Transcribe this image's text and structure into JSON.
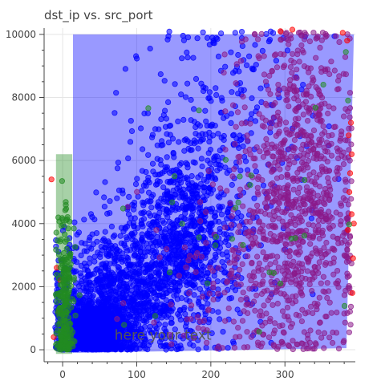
{
  "chart_data": {
    "type": "scatter",
    "title": "dst_ip vs. src_port",
    "xlabel": "",
    "ylabel": "",
    "xlim": [
      -25,
      395
    ],
    "ylim": [
      -380,
      10200
    ],
    "x_ticks": [
      0,
      100,
      200,
      300
    ],
    "y_ticks": [
      0,
      2000,
      4000,
      6000,
      8000,
      10000
    ],
    "grid": true,
    "legend": "none",
    "colors": {
      "blue": "#0000ff",
      "purple": "#8b1a8b",
      "red": "#ff0000",
      "green": "#228b22",
      "blue_region": "#0000ff",
      "green_region": "#228b22"
    },
    "series": [
      {
        "color_key": "blue",
        "clusters": [
          {
            "x_mean": 45,
            "x_sd": 20,
            "y_mean": 600,
            "y_sd": 450,
            "count": 1400
          },
          {
            "x_mean": 80,
            "x_sd": 45,
            "y_mean": 1700,
            "y_sd": 1100,
            "count": 900
          },
          {
            "x_mean": 160,
            "x_sd": 40,
            "y_mean": 3600,
            "y_sd": 1500,
            "count": 900
          },
          {
            "x_mean": 220,
            "x_sd": 60,
            "y_mean": 7000,
            "y_sd": 2200,
            "count": 260
          }
        ]
      },
      {
        "color_key": "purple",
        "clusters": [
          {
            "x_mean": 320,
            "x_sd": 40,
            "y_mean": 5200,
            "y_sd": 2600,
            "count": 900
          },
          {
            "x_mean": 250,
            "x_sd": 60,
            "y_mean": 2000,
            "y_sd": 1400,
            "count": 180
          }
        ]
      },
      {
        "color_key": "red",
        "points": [
          [
            390,
            4300
          ],
          [
            385,
            3800
          ],
          [
            388,
            5600
          ],
          [
            392,
            2900
          ],
          [
            386,
            6800
          ],
          [
            389,
            7200
          ],
          [
            384,
            9800
          ],
          [
            294,
            10100
          ],
          [
            310,
            10150
          ],
          [
            378,
            10050
          ],
          [
            391,
            1800
          ],
          [
            387,
            5000
          ],
          [
            -5,
            1200
          ],
          [
            -12,
            400
          ],
          [
            -8,
            2600
          ],
          [
            -15,
            5400
          ],
          [
            393,
            4000
          ],
          [
            390,
            6200
          ],
          [
            -3,
            2200
          ]
        ]
      },
      {
        "color_key": "green",
        "clusters": [
          {
            "x_mean": 3,
            "x_sd": 6,
            "y_mean": 1500,
            "y_sd": 1400,
            "count": 260
          },
          {
            "x_mean": 260,
            "x_sd": 90,
            "y_mean": 4000,
            "y_sd": 2500,
            "count": 35
          }
        ]
      }
    ],
    "regions": [
      {
        "color_key": "blue_region",
        "opacity": 0.4,
        "polygon": [
          [
            14,
            10000
          ],
          [
            393,
            10000
          ],
          [
            383,
            50
          ],
          [
            14,
            -100
          ]
        ]
      },
      {
        "color_key": "green_region",
        "opacity": 0.4,
        "polygon": [
          [
            -9,
            6200
          ],
          [
            13,
            6200
          ],
          [
            13,
            -130
          ],
          [
            -9,
            -130
          ]
        ]
      }
    ],
    "annotation": {
      "text": "here your text",
      "x": 70,
      "y": 320
    }
  }
}
